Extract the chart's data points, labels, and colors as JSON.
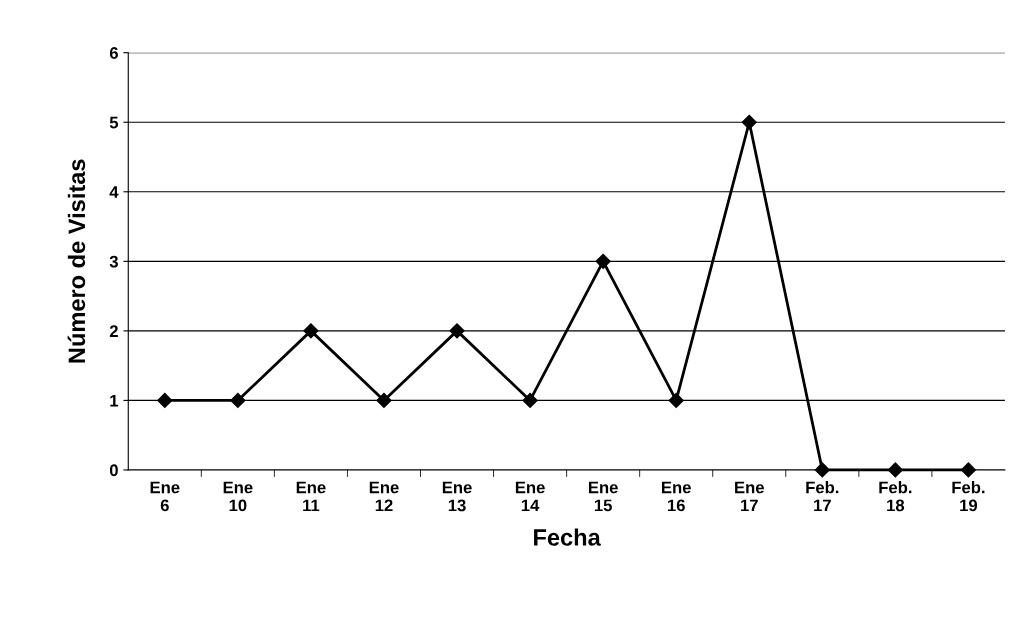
{
  "chart_data": {
    "type": "line",
    "xlabel": "Fecha",
    "ylabel": "Número de Visitas",
    "categories": [
      "Ene\n6",
      "Ene\n10",
      "Ene\n11",
      "Ene\n12",
      "Ene\n13",
      "Ene\n14",
      "Ene\n15",
      "Ene\n16",
      "Ene\n17",
      "Feb.\n17",
      "Feb.\n18",
      "Feb.\n19"
    ],
    "series": [
      {
        "color": "#000000",
        "values": [
          1,
          1,
          2,
          1,
          2,
          1,
          3,
          1,
          5,
          0,
          0,
          0
        ]
      }
    ],
    "ylim": [
      0,
      6
    ],
    "yticks": [
      0,
      1,
      2,
      3,
      4,
      5,
      6
    ],
    "grid": "y",
    "legend": false,
    "marker": "diamond",
    "line_style": "solid"
  }
}
